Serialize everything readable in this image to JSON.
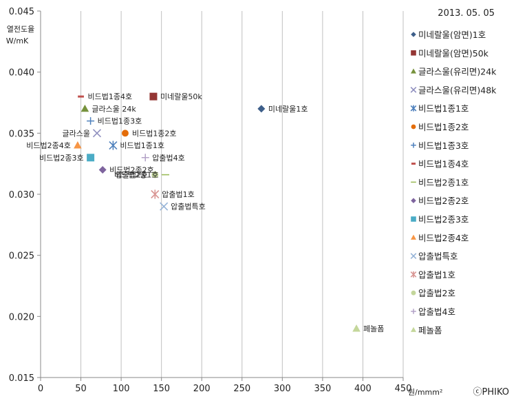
{
  "chart_data": {
    "type": "scatter",
    "date_label": "2013. 05. 05",
    "ylabel_line1": "열전도율",
    "ylabel_line2": "W/mK",
    "xlabel": "원/mmm²",
    "copyright": "ⓒPHIKO",
    "xlim": [
      0,
      450
    ],
    "ylim": [
      0.015,
      0.045
    ],
    "x_ticks": [
      0,
      50,
      100,
      150,
      200,
      250,
      300,
      350,
      400,
      450
    ],
    "y_ticks": [
      0.015,
      0.02,
      0.025,
      0.03,
      0.035,
      0.04,
      0.045
    ],
    "y_tick_labels": [
      "0.015",
      "0.020",
      "0.025",
      "0.030",
      "0.035",
      "0.040",
      "0.045"
    ],
    "grid": "vertical",
    "legend_position": "right",
    "series": [
      {
        "name": "미네랄울(암면)1호",
        "marker": "diamond",
        "color": "#3E5F8A",
        "x": 274,
        "y": 0.037,
        "label": "미네랄울1호",
        "label_pos": "right"
      },
      {
        "name": "미네랄울(암면)50k",
        "marker": "square",
        "color": "#943634",
        "x": 140,
        "y": 0.038,
        "label": "미네랄울50k",
        "label_pos": "right"
      },
      {
        "name": "글라스울(유리면)24k",
        "marker": "triangle",
        "color": "#76923C",
        "x": 55,
        "y": 0.037,
        "label": "글라스울 24k",
        "label_pos": "right"
      },
      {
        "name": "글라스울(유리면)48k",
        "marker": "x",
        "color": "#8F8FBF",
        "x": 70,
        "y": 0.035,
        "label": "글라스울",
        "label_pos": "left"
      },
      {
        "name": "비드법1종1호",
        "marker": "asterisk",
        "color": "#4F81BD",
        "x": 90,
        "y": 0.034,
        "label": "비드법1종1호",
        "label_pos": "right"
      },
      {
        "name": "비드법1종2호",
        "marker": "circle",
        "color": "#E36C09",
        "x": 105,
        "y": 0.035,
        "label": "비드법1종2호",
        "label_pos": "right"
      },
      {
        "name": "비드법1종3호",
        "marker": "plus",
        "color": "#4F81BD",
        "x": 62,
        "y": 0.036,
        "label": "비드법1종3호",
        "label_pos": "right"
      },
      {
        "name": "비드법1종4호",
        "marker": "dash",
        "color": "#C0504D",
        "x": 50,
        "y": 0.038,
        "label": "비드법1종4호",
        "label_pos": "right"
      },
      {
        "name": "비드법2종1호",
        "marker": "hline",
        "color": "#9BBB59",
        "x": 155,
        "y": 0.0316,
        "label": "비드법2종1호",
        "label_pos": "left"
      },
      {
        "name": "비드법2종2호",
        "marker": "diamond",
        "color": "#7E649E",
        "x": 77,
        "y": 0.032,
        "label": "비드법2종2호",
        "label_pos": "right"
      },
      {
        "name": "비드법2종3호",
        "marker": "square",
        "color": "#4BACC6",
        "x": 62,
        "y": 0.033,
        "label": "비드법2종3호",
        "label_pos": "left"
      },
      {
        "name": "비드법2종4호",
        "marker": "triangle",
        "color": "#F79646",
        "x": 46,
        "y": 0.034,
        "label": "비드법2종4호",
        "label_pos": "left"
      },
      {
        "name": "압출법특호",
        "marker": "x",
        "color": "#95B3D7",
        "x": 153,
        "y": 0.029,
        "label": "압출법특호",
        "label_pos": "right"
      },
      {
        "name": "압출법1호",
        "marker": "asterisk",
        "color": "#D99694",
        "x": 142,
        "y": 0.03,
        "label": "압출법1호",
        "label_pos": "right"
      },
      {
        "name": "압출법2호",
        "marker": "circle",
        "color": "#C3D69B",
        "x": 142,
        "y": 0.0316,
        "label": "압출법2호",
        "label_pos": "left"
      },
      {
        "name": "압출법4호",
        "marker": "plus",
        "color": "#B3A2C7",
        "x": 130,
        "y": 0.033,
        "label": "압출법4호",
        "label_pos": "right"
      },
      {
        "name": "페놀폼",
        "marker": "triangle",
        "color": "#C4D79B",
        "x": 392,
        "y": 0.019,
        "label": "페놀폼",
        "label_pos": "right"
      }
    ]
  }
}
